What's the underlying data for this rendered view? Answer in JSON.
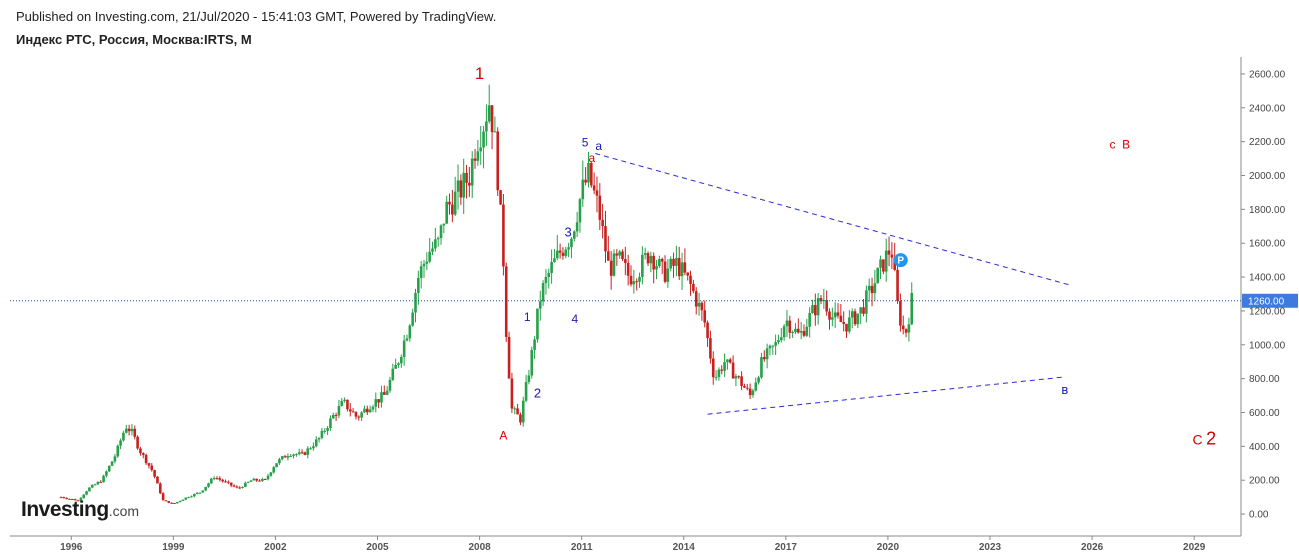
{
  "header": {
    "published": "Published on Investing.com, 21/Jul/2020 - 15:41:03 GMT, Powered by TradingView.",
    "symbol": "Индекс РТС, Россия, Москва:IRTS, M"
  },
  "logo": {
    "main": "Investing",
    "suffix": ".com"
  },
  "colors": {
    "up": "#26a04a",
    "down": "#c8201e",
    "wave_red": "#d40000",
    "wave_blue": "#1a1ab4",
    "trend_line": "#2b2bd6",
    "price_line": "#1f4e9e",
    "price_badge": "#3d7be0",
    "p_marker": "#2196f3"
  },
  "chart_data": {
    "type": "candlestick",
    "timeframe": "M",
    "ylim": [
      -100,
      2700
    ],
    "xlim": [
      1994.2,
      2030.2
    ],
    "y_ticks": [
      "0.00",
      "200.00",
      "400.00",
      "600.00",
      "800.00",
      "1000.00",
      "1200.00",
      "1400.00",
      "1600.00",
      "1800.00",
      "2000.00",
      "2200.00",
      "2400.00",
      "2600.00"
    ],
    "x_ticks": [
      "1996",
      "1999",
      "2002",
      "2005",
      "2008",
      "2011",
      "2014",
      "2017",
      "2020",
      "2023",
      "2026",
      "2029"
    ],
    "last_price": "1260.00",
    "price_path": [
      [
        1995.7,
        100
      ],
      [
        1996.2,
        80
      ],
      [
        1996.5,
        150
      ],
      [
        1996.9,
        200
      ],
      [
        1997.3,
        350
      ],
      [
        1997.6,
        520
      ],
      [
        1997.8,
        480
      ],
      [
        1998.0,
        380
      ],
      [
        1998.4,
        250
      ],
      [
        1998.7,
        80
      ],
      [
        1999.0,
        60
      ],
      [
        1999.4,
        100
      ],
      [
        1999.8,
        130
      ],
      [
        2000.2,
        220
      ],
      [
        2000.5,
        190
      ],
      [
        2000.9,
        150
      ],
      [
        2001.3,
        200
      ],
      [
        2001.7,
        200
      ],
      [
        2002.0,
        300
      ],
      [
        2002.4,
        360
      ],
      [
        2002.8,
        350
      ],
      [
        2003.3,
        450
      ],
      [
        2003.7,
        580
      ],
      [
        2004.0,
        660
      ],
      [
        2004.4,
        570
      ],
      [
        2004.8,
        650
      ],
      [
        2005.2,
        700
      ],
      [
        2005.6,
        900
      ],
      [
        2005.9,
        1100
      ],
      [
        2006.2,
        1400
      ],
      [
        2006.5,
        1550
      ],
      [
        2006.8,
        1600
      ],
      [
        2007.0,
        1800
      ],
      [
        2007.4,
        1900
      ],
      [
        2007.7,
        2000
      ],
      [
        2007.9,
        2200
      ],
      [
        2008.1,
        2300
      ],
      [
        2008.3,
        2450
      ],
      [
        2008.5,
        2100
      ],
      [
        2008.7,
        1500
      ],
      [
        2008.8,
        1000
      ],
      [
        2008.95,
        620
      ],
      [
        2009.2,
        560
      ],
      [
        2009.5,
        900
      ],
      [
        2009.8,
        1300
      ],
      [
        2010.1,
        1450
      ],
      [
        2010.4,
        1560
      ],
      [
        2010.7,
        1650
      ],
      [
        2011.0,
        1900
      ],
      [
        2011.2,
        2000
      ],
      [
        2011.5,
        1800
      ],
      [
        2011.8,
        1450
      ],
      [
        2012.1,
        1500
      ],
      [
        2012.4,
        1400
      ],
      [
        2012.7,
        1450
      ],
      [
        2013.0,
        1550
      ],
      [
        2013.4,
        1420
      ],
      [
        2013.8,
        1480
      ],
      [
        2014.2,
        1350
      ],
      [
        2014.6,
        1150
      ],
      [
        2014.9,
        800
      ],
      [
        2015.2,
        900
      ],
      [
        2015.6,
        800
      ],
      [
        2015.95,
        700
      ],
      [
        2016.3,
        900
      ],
      [
        2016.7,
        1000
      ],
      [
        2017.0,
        1150
      ],
      [
        2017.4,
        1050
      ],
      [
        2017.8,
        1200
      ],
      [
        2018.1,
        1280
      ],
      [
        2018.4,
        1150
      ],
      [
        2018.8,
        1120
      ],
      [
        2019.2,
        1200
      ],
      [
        2019.5,
        1320
      ],
      [
        2019.9,
        1500
      ],
      [
        2020.1,
        1580
      ],
      [
        2020.3,
        1200
      ],
      [
        2020.5,
        1050
      ],
      [
        2020.7,
        1260
      ]
    ],
    "annotations": [
      {
        "text": "1",
        "x": 2008.0,
        "y": 2570,
        "color": "red",
        "size": 17
      },
      {
        "text": "A",
        "x": 2008.7,
        "y": 440,
        "color": "red",
        "size": 12
      },
      {
        "text": "1",
        "x": 2009.4,
        "y": 1140,
        "color": "blue",
        "size": 12
      },
      {
        "text": "2",
        "x": 2009.7,
        "y": 690,
        "color": "blue",
        "size": 13
      },
      {
        "text": "3",
        "x": 2010.6,
        "y": 1640,
        "color": "blue",
        "size": 13
      },
      {
        "text": "4",
        "x": 2010.8,
        "y": 1130,
        "color": "blue",
        "size": 12
      },
      {
        "text": "5",
        "x": 2011.1,
        "y": 2170,
        "color": "blue",
        "size": 12
      },
      {
        "text": "a",
        "x": 2011.5,
        "y": 2150,
        "color": "blue",
        "size": 12
      },
      {
        "text": "a",
        "x": 2011.3,
        "y": 2080,
        "color": "red",
        "size": 12
      },
      {
        "text": "c",
        "x": 2026.6,
        "y": 2160,
        "color": "red",
        "size": 12
      },
      {
        "text": "B",
        "x": 2027.0,
        "y": 2160,
        "color": "red",
        "size": 12
      },
      {
        "text": "в",
        "x": 2025.2,
        "y": 710,
        "color": "blue",
        "size": 13
      },
      {
        "text": "C",
        "x": 2029.1,
        "y": 410,
        "color": "red",
        "size": 14
      },
      {
        "text": "2",
        "x": 2029.5,
        "y": 410,
        "color": "red",
        "size": 18
      }
    ],
    "trend_lines": [
      {
        "from": [
          2011.4,
          2130
        ],
        "to": [
          2025.4,
          1350
        ]
      },
      {
        "from": [
          2014.7,
          590
        ],
        "to": [
          2025.2,
          810
        ]
      }
    ],
    "marker": {
      "text": "P",
      "x": 2020.2,
      "y": 1500
    }
  }
}
